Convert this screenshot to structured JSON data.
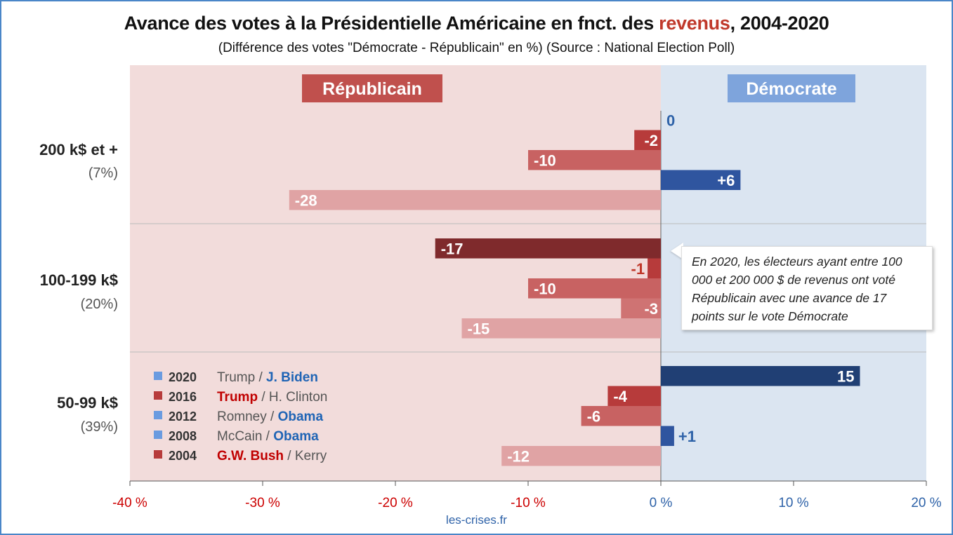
{
  "title_parts": {
    "before": "Avance des votes à la Présidentielle Américaine en fnct. des ",
    "highlight": "revenus",
    "after": ", 2004-2020"
  },
  "subtitle": "(Différence des votes \"Démocrate - Républicain\" en %) (Source : National Election Poll)",
  "source_footer": "les-crises.fr",
  "callout": "En 2020, les électeurs ayant entre 100 000 et 200 000 $ de revenus ont voté Républicain avec une avance de 17 points sur le vote Démocrate",
  "colors": {
    "rep_bg": "#f2dcdb",
    "dem_bg": "#dbe5f1",
    "rep_label_bg": "#c0504d",
    "dem_label_bg": "#7ea4dc",
    "rep_2020": "#7f2a2c",
    "rep_2016": "#b73b3b",
    "rep_2012": "#c86262",
    "rep_2008": "#cf7373",
    "rep_2004": "#e0a3a4",
    "dem_dark": "#203f74",
    "dem": "#2f559f",
    "lbl_rep": "#c0392b",
    "lbl_dem": "#2e62a8",
    "tick_neg": "#cc0000",
    "tick_pos": "#2e62a8"
  },
  "chart_data": {
    "type": "bar",
    "orientation": "horizontal",
    "xlim": [
      -40,
      20
    ],
    "xticks": [
      -40,
      -30,
      -20,
      -10,
      0,
      10,
      20
    ],
    "xtick_labels": [
      "-40 %",
      "-30 %",
      "-20 %",
      "-10 %",
      "0 %",
      "10 %",
      "20 %"
    ],
    "side_labels": {
      "rep": "Républicain",
      "dem": "Démocrate"
    },
    "categories": [
      {
        "name": "200 k$ et +",
        "share": "(7%)",
        "values": [
          0,
          -2,
          -10,
          6,
          -28
        ],
        "labels": [
          "0",
          "-2",
          "-10",
          "+6",
          "-28"
        ]
      },
      {
        "name": "100-199 k$",
        "share": "(20%)",
        "values": [
          -17,
          -1,
          -10,
          -3,
          -15
        ],
        "labels": [
          "-17",
          "-1",
          "-10",
          "-3",
          "-15"
        ]
      },
      {
        "name": "50-99 k$",
        "share": "(39%)",
        "values": [
          15,
          -4,
          -6,
          1,
          -12
        ],
        "labels": [
          "15",
          "-4",
          "-6",
          "+1",
          "-12"
        ]
      }
    ],
    "years": [
      "2020",
      "2016",
      "2012",
      "2008",
      "2004"
    ],
    "legend": [
      {
        "year": "2020",
        "rep": "Trump",
        "dem": "J. Biden",
        "winner": "dem",
        "swatch": "#6a9be0"
      },
      {
        "year": "2016",
        "rep": "Trump",
        "dem": "H. Clinton",
        "winner": "rep",
        "swatch": "#b73b3b"
      },
      {
        "year": "2012",
        "rep": "Romney",
        "dem": "Obama",
        "winner": "dem",
        "swatch": "#6a9be0"
      },
      {
        "year": "2008",
        "rep": "McCain",
        "dem": "Obama",
        "winner": "dem",
        "swatch": "#6a9be0"
      },
      {
        "year": "2004",
        "rep": "G.W. Bush",
        "dem": "Kerry",
        "winner": "rep",
        "swatch": "#b73b3b"
      }
    ],
    "legend_separator": " / "
  }
}
